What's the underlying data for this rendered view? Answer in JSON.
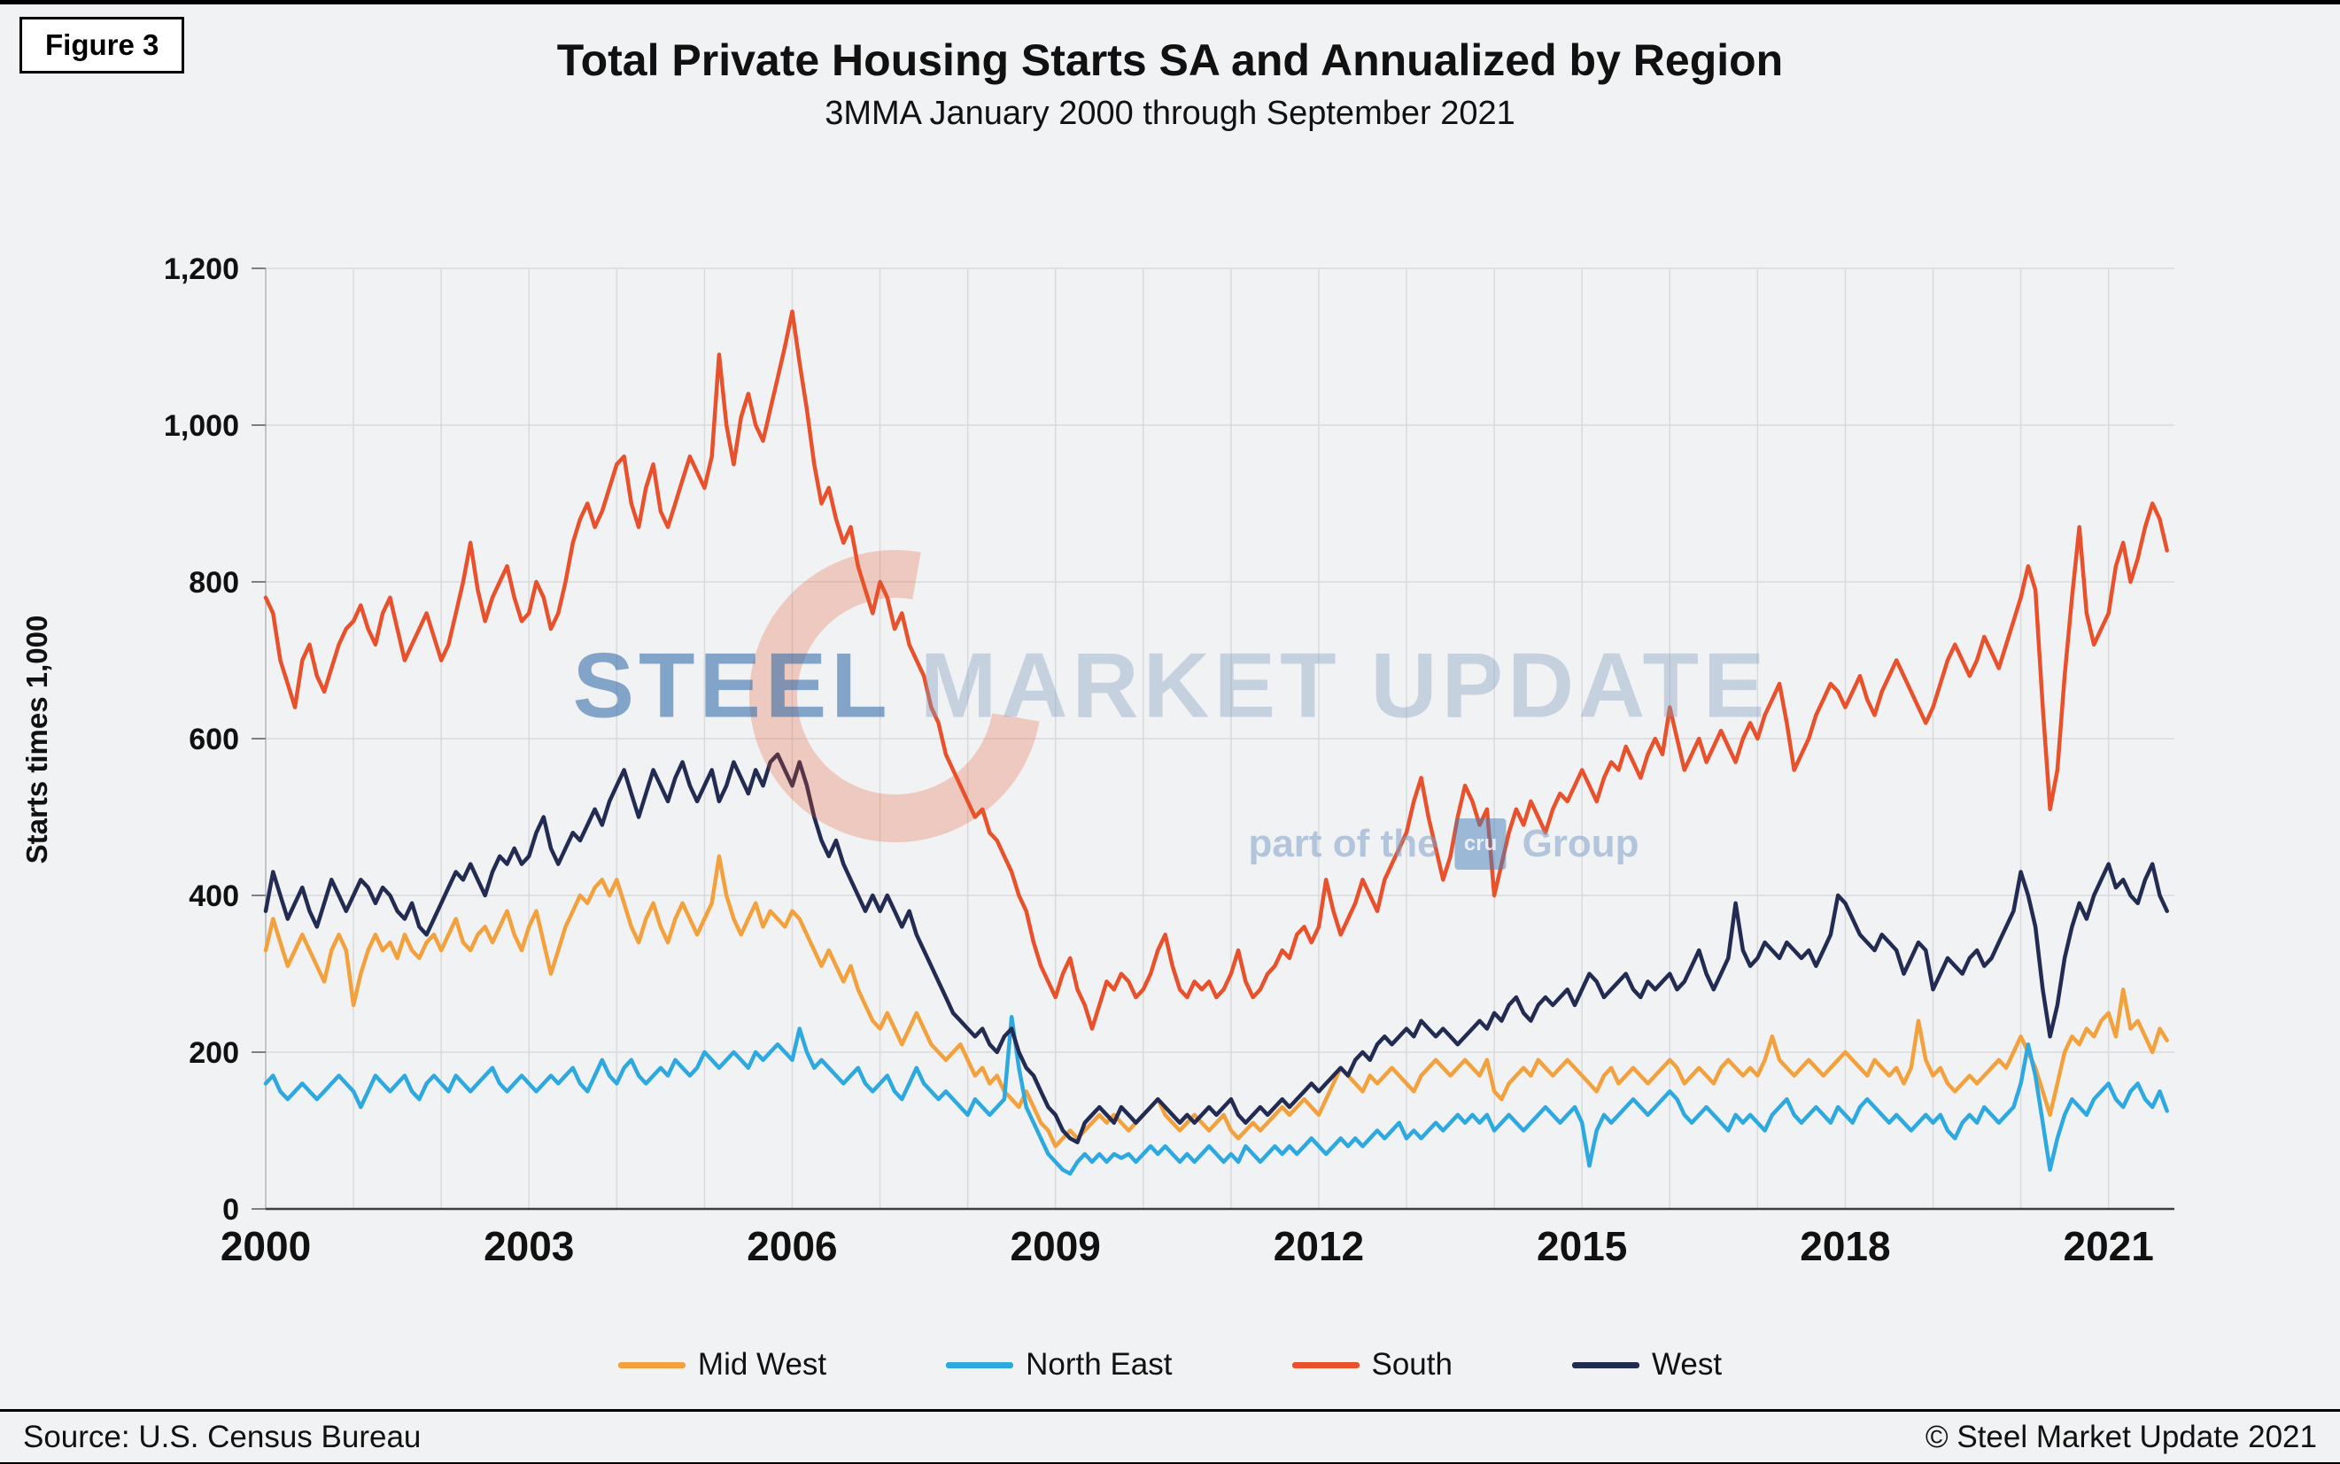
{
  "figure_label": "Figure 3",
  "watermark": {
    "brand_bold": "STEEL",
    "brand_light": "MARKET UPDATE",
    "tagline_prefix": "part of the",
    "cru_label": "cru",
    "tagline_suffix": "Group"
  },
  "footer": {
    "source": "Source: U.S. Census Bureau",
    "copyright": "© Steel Market Update 2021"
  },
  "chart_data": {
    "type": "line",
    "title": "Total Private Housing Starts SA and Annualized by Region",
    "subtitle": "3MMA January 2000 through September 2021",
    "xlabel": "",
    "ylabel": "Starts times 1,000",
    "ylim": [
      0,
      1200
    ],
    "yticks": [
      0,
      200,
      400,
      600,
      800,
      1000,
      1200
    ],
    "ytick_labels": [
      "0",
      "200",
      "400",
      "600",
      "800",
      "1,000",
      "1,200"
    ],
    "xticks": [
      2000,
      2003,
      2006,
      2009,
      2012,
      2015,
      2018,
      2021
    ],
    "xlim": [
      2000,
      2021.75
    ],
    "frequency": "monthly",
    "points_per_year": 12,
    "x_start": "2000-01",
    "x_end": "2021-09",
    "grid": true,
    "gridline_color": "#d9dadb",
    "legend_position": "bottom",
    "series": [
      {
        "name": "Mid West",
        "color": "#F2A13D",
        "values": [
          330,
          370,
          340,
          310,
          330,
          350,
          330,
          310,
          290,
          330,
          350,
          330,
          260,
          300,
          330,
          350,
          330,
          340,
          320,
          350,
          330,
          320,
          340,
          350,
          330,
          350,
          370,
          340,
          330,
          350,
          360,
          340,
          360,
          380,
          350,
          330,
          360,
          380,
          340,
          300,
          330,
          360,
          380,
          400,
          390,
          410,
          420,
          400,
          420,
          390,
          360,
          340,
          370,
          390,
          360,
          340,
          370,
          390,
          370,
          350,
          370,
          390,
          450,
          400,
          370,
          350,
          370,
          390,
          360,
          380,
          370,
          360,
          380,
          370,
          350,
          330,
          310,
          330,
          310,
          290,
          310,
          280,
          260,
          240,
          230,
          250,
          230,
          210,
          230,
          250,
          230,
          210,
          200,
          190,
          200,
          210,
          190,
          170,
          180,
          160,
          170,
          150,
          140,
          130,
          150,
          130,
          110,
          100,
          80,
          90,
          100,
          90,
          100,
          110,
          120,
          110,
          120,
          110,
          100,
          110,
          120,
          130,
          140,
          120,
          110,
          100,
          110,
          120,
          110,
          100,
          110,
          120,
          100,
          90,
          100,
          110,
          100,
          110,
          120,
          130,
          120,
          130,
          140,
          130,
          120,
          140,
          160,
          180,
          170,
          160,
          150,
          170,
          160,
          170,
          180,
          170,
          160,
          150,
          170,
          180,
          190,
          180,
          170,
          180,
          190,
          180,
          170,
          190,
          150,
          140,
          160,
          170,
          180,
          170,
          190,
          180,
          170,
          180,
          190,
          180,
          170,
          160,
          150,
          170,
          180,
          160,
          170,
          180,
          170,
          160,
          170,
          180,
          190,
          180,
          160,
          170,
          180,
          170,
          160,
          180,
          190,
          180,
          170,
          180,
          170,
          190,
          220,
          190,
          180,
          170,
          180,
          190,
          180,
          170,
          180,
          190,
          200,
          190,
          180,
          170,
          190,
          180,
          170,
          180,
          160,
          180,
          240,
          190,
          170,
          180,
          160,
          150,
          160,
          170,
          160,
          170,
          180,
          190,
          180,
          200,
          220,
          200,
          180,
          150,
          120,
          160,
          200,
          220,
          210,
          230,
          220,
          240,
          250,
          220,
          280,
          230,
          240,
          220,
          200,
          230,
          215
        ]
      },
      {
        "name": "North East",
        "color": "#2EA9E0",
        "values": [
          160,
          170,
          150,
          140,
          150,
          160,
          150,
          140,
          150,
          160,
          170,
          160,
          150,
          130,
          150,
          170,
          160,
          150,
          160,
          170,
          150,
          140,
          160,
          170,
          160,
          150,
          170,
          160,
          150,
          160,
          170,
          180,
          160,
          150,
          160,
          170,
          160,
          150,
          160,
          170,
          160,
          170,
          180,
          160,
          150,
          170,
          190,
          170,
          160,
          180,
          190,
          170,
          160,
          170,
          180,
          170,
          190,
          180,
          170,
          180,
          200,
          190,
          180,
          190,
          200,
          190,
          180,
          200,
          190,
          200,
          210,
          200,
          190,
          230,
          200,
          180,
          190,
          180,
          170,
          160,
          170,
          180,
          160,
          150,
          160,
          170,
          150,
          140,
          160,
          180,
          160,
          150,
          140,
          150,
          140,
          130,
          120,
          140,
          130,
          120,
          130,
          140,
          245,
          180,
          130,
          110,
          90,
          70,
          60,
          50,
          45,
          60,
          70,
          60,
          70,
          60,
          70,
          65,
          70,
          60,
          70,
          80,
          70,
          80,
          70,
          60,
          70,
          60,
          70,
          80,
          70,
          60,
          70,
          60,
          80,
          70,
          60,
          70,
          80,
          70,
          80,
          70,
          80,
          90,
          80,
          70,
          80,
          90,
          80,
          90,
          80,
          90,
          100,
          90,
          100,
          110,
          90,
          100,
          90,
          100,
          110,
          100,
          110,
          120,
          110,
          120,
          110,
          120,
          100,
          110,
          120,
          110,
          100,
          110,
          120,
          130,
          120,
          110,
          120,
          130,
          110,
          55,
          100,
          120,
          110,
          120,
          130,
          140,
          130,
          120,
          130,
          140,
          150,
          140,
          120,
          110,
          120,
          130,
          120,
          110,
          100,
          120,
          110,
          120,
          110,
          100,
          120,
          130,
          140,
          120,
          110,
          120,
          130,
          120,
          110,
          130,
          120,
          110,
          130,
          140,
          130,
          120,
          110,
          120,
          110,
          100,
          110,
          120,
          110,
          120,
          100,
          90,
          110,
          120,
          110,
          130,
          120,
          110,
          120,
          130,
          160,
          210,
          170,
          110,
          50,
          90,
          120,
          140,
          130,
          120,
          140,
          150,
          160,
          140,
          130,
          150,
          160,
          140,
          130,
          150,
          125
        ]
      },
      {
        "name": "South",
        "color": "#E8512B",
        "values": [
          780,
          760,
          700,
          670,
          640,
          700,
          720,
          680,
          660,
          690,
          720,
          740,
          750,
          770,
          740,
          720,
          760,
          780,
          740,
          700,
          720,
          740,
          760,
          730,
          700,
          720,
          760,
          800,
          850,
          790,
          750,
          780,
          800,
          820,
          780,
          750,
          760,
          800,
          780,
          740,
          760,
          800,
          850,
          880,
          900,
          870,
          890,
          920,
          950,
          960,
          900,
          870,
          920,
          950,
          890,
          870,
          900,
          930,
          960,
          940,
          920,
          960,
          1090,
          1000,
          950,
          1010,
          1040,
          1000,
          980,
          1020,
          1060,
          1100,
          1145,
          1080,
          1020,
          950,
          900,
          920,
          880,
          850,
          870,
          820,
          790,
          760,
          800,
          780,
          740,
          760,
          720,
          700,
          680,
          640,
          620,
          580,
          560,
          540,
          520,
          500,
          510,
          480,
          470,
          450,
          430,
          400,
          380,
          340,
          310,
          290,
          270,
          300,
          320,
          280,
          260,
          230,
          260,
          290,
          280,
          300,
          290,
          270,
          280,
          300,
          330,
          350,
          310,
          280,
          270,
          290,
          280,
          290,
          270,
          280,
          300,
          330,
          290,
          270,
          280,
          300,
          310,
          330,
          320,
          350,
          360,
          340,
          360,
          420,
          380,
          350,
          370,
          390,
          420,
          400,
          380,
          420,
          440,
          460,
          480,
          520,
          550,
          500,
          460,
          420,
          450,
          500,
          540,
          520,
          490,
          510,
          400,
          440,
          480,
          510,
          490,
          520,
          500,
          480,
          510,
          530,
          520,
          540,
          560,
          540,
          520,
          550,
          570,
          560,
          590,
          570,
          550,
          580,
          600,
          580,
          640,
          600,
          560,
          580,
          600,
          570,
          590,
          610,
          590,
          570,
          600,
          620,
          600,
          630,
          650,
          670,
          620,
          560,
          580,
          600,
          630,
          650,
          670,
          660,
          640,
          660,
          680,
          650,
          630,
          660,
          680,
          700,
          680,
          660,
          640,
          620,
          640,
          670,
          700,
          720,
          700,
          680,
          700,
          730,
          710,
          690,
          720,
          750,
          780,
          820,
          790,
          640,
          510,
          560,
          680,
          780,
          870,
          760,
          720,
          740,
          760,
          820,
          850,
          800,
          830,
          870,
          900,
          880,
          840
        ]
      },
      {
        "name": "West",
        "color": "#222B52",
        "values": [
          380,
          430,
          400,
          370,
          390,
          410,
          380,
          360,
          390,
          420,
          400,
          380,
          400,
          420,
          410,
          390,
          410,
          400,
          380,
          370,
          390,
          360,
          350,
          370,
          390,
          410,
          430,
          420,
          440,
          420,
          400,
          430,
          450,
          440,
          460,
          440,
          450,
          480,
          500,
          460,
          440,
          460,
          480,
          470,
          490,
          510,
          490,
          520,
          540,
          560,
          530,
          500,
          530,
          560,
          540,
          520,
          550,
          570,
          540,
          520,
          540,
          560,
          520,
          540,
          570,
          550,
          530,
          560,
          540,
          570,
          580,
          560,
          540,
          570,
          540,
          500,
          470,
          450,
          470,
          440,
          420,
          400,
          380,
          400,
          380,
          400,
          380,
          360,
          380,
          350,
          330,
          310,
          290,
          270,
          250,
          240,
          230,
          220,
          230,
          210,
          200,
          220,
          230,
          200,
          180,
          170,
          150,
          130,
          120,
          100,
          90,
          85,
          110,
          120,
          130,
          120,
          110,
          130,
          120,
          110,
          120,
          130,
          140,
          130,
          120,
          110,
          120,
          110,
          120,
          130,
          120,
          130,
          140,
          120,
          110,
          120,
          130,
          120,
          130,
          140,
          130,
          140,
          150,
          160,
          150,
          160,
          170,
          180,
          170,
          190,
          200,
          190,
          210,
          220,
          210,
          220,
          230,
          220,
          240,
          230,
          220,
          230,
          220,
          210,
          220,
          230,
          240,
          230,
          250,
          240,
          260,
          270,
          250,
          240,
          260,
          270,
          260,
          270,
          280,
          260,
          280,
          300,
          290,
          270,
          280,
          290,
          300,
          280,
          270,
          290,
          280,
          290,
          300,
          280,
          290,
          310,
          330,
          300,
          280,
          300,
          320,
          390,
          330,
          310,
          320,
          340,
          330,
          320,
          340,
          330,
          320,
          330,
          310,
          330,
          350,
          400,
          390,
          370,
          350,
          340,
          330,
          350,
          340,
          330,
          300,
          320,
          340,
          330,
          280,
          300,
          320,
          310,
          300,
          320,
          330,
          310,
          320,
          340,
          360,
          380,
          430,
          400,
          360,
          280,
          220,
          260,
          320,
          360,
          390,
          370,
          400,
          420,
          440,
          410,
          420,
          400,
          390,
          420,
          440,
          400,
          380
        ]
      }
    ]
  }
}
